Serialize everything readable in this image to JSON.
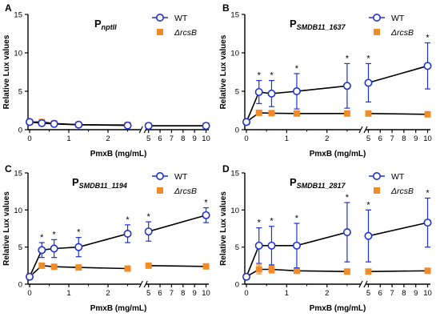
{
  "colors": {
    "wt": "#1e32d2",
    "rcsb": "#f08c28",
    "axis": "#000000"
  },
  "chart_data": [
    {
      "type": "line",
      "panel": "A",
      "title_main": "P",
      "title_sub": "nptII",
      "xlabel": "PmxB (mg/mL)",
      "ylabel": "Relative Lux values",
      "ylim": [
        0,
        15
      ],
      "yticks": [
        "0",
        "5",
        "10",
        "15"
      ],
      "xticks_left": [
        "0",
        "1",
        "2"
      ],
      "xticks_right": [
        "5",
        "6",
        "7",
        "8",
        "9",
        "10"
      ],
      "x_break": [
        3,
        4.7
      ],
      "legend_position": "top-right",
      "series": [
        {
          "name": "WT",
          "marker": "circle",
          "x": [
            0,
            0.3125,
            0.625,
            1.25,
            2.5,
            5,
            10
          ],
          "y": [
            1.0,
            0.85,
            0.75,
            0.65,
            0.55,
            0.5,
            0.5
          ],
          "err": [
            0.1,
            0.3,
            0.2,
            0.1,
            0.1,
            0.1,
            0.1
          ],
          "sig": [
            false,
            false,
            false,
            false,
            false,
            false,
            false
          ]
        },
        {
          "name": "ΔrcsB",
          "marker": "square",
          "x": [
            0,
            0.3125,
            0.625,
            1.25,
            2.5,
            5,
            10
          ],
          "y": [
            1.0,
            1.0,
            0.8,
            0.65,
            0.6,
            0.5,
            0.5
          ],
          "err": [
            0.1,
            0.2,
            0.15,
            0.1,
            0.1,
            0.1,
            0.1
          ],
          "sig": [
            false,
            false,
            false,
            false,
            false,
            false,
            false
          ]
        }
      ]
    },
    {
      "type": "line",
      "panel": "B",
      "title_main": "P",
      "title_sub": "SMDB11_1637",
      "xlabel": "PmxB (mg/mL)",
      "ylabel": "Relative Lux values",
      "ylim": [
        0,
        15
      ],
      "yticks": [
        "0",
        "5",
        "10",
        "15"
      ],
      "xticks_left": [
        "0",
        "1",
        "2"
      ],
      "xticks_right": [
        "5",
        "6",
        "7",
        "8",
        "9",
        "10"
      ],
      "x_break": [
        3,
        4.7
      ],
      "legend_position": "top-right",
      "series": [
        {
          "name": "WT",
          "marker": "circle",
          "x": [
            0,
            0.3125,
            0.625,
            1.25,
            2.5,
            5,
            10
          ],
          "y": [
            1.0,
            4.9,
            4.7,
            5.0,
            5.7,
            6.1,
            8.3
          ],
          "err": [
            0.2,
            1.5,
            1.7,
            2.3,
            2.9,
            2.5,
            3.0
          ],
          "sig": [
            false,
            true,
            true,
            true,
            true,
            true,
            true
          ]
        },
        {
          "name": "ΔrcsB",
          "marker": "square",
          "x": [
            0,
            0.3125,
            0.625,
            1.25,
            2.5,
            5,
            10
          ],
          "y": [
            1.0,
            2.2,
            2.15,
            2.1,
            2.1,
            2.1,
            2.0
          ],
          "err": [
            0.1,
            0.1,
            0.1,
            0.1,
            0.1,
            0.1,
            0.1
          ],
          "sig": [
            false,
            false,
            false,
            false,
            false,
            false,
            false
          ]
        }
      ]
    },
    {
      "type": "line",
      "panel": "C",
      "title_main": "P",
      "title_sub": "SMDB11_1194",
      "xlabel": "PmxB (mg/mL)",
      "ylabel": "Relative Lux values",
      "ylim": [
        0,
        15
      ],
      "yticks": [
        "0",
        "5",
        "10",
        "15"
      ],
      "xticks_left": [
        "0",
        "1",
        "2"
      ],
      "xticks_right": [
        "5",
        "6",
        "7",
        "8",
        "9",
        "10"
      ],
      "x_break": [
        3,
        4.7
      ],
      "legend_position": "top-right",
      "series": [
        {
          "name": "WT",
          "marker": "circle",
          "x": [
            0,
            0.3125,
            0.625,
            1.25,
            2.5,
            5,
            10
          ],
          "y": [
            1.0,
            4.6,
            4.8,
            5.0,
            6.8,
            7.1,
            9.3
          ],
          "err": [
            0.2,
            1.0,
            1.2,
            1.3,
            1.2,
            1.3,
            1.0
          ],
          "sig": [
            false,
            true,
            true,
            true,
            true,
            true,
            true
          ]
        },
        {
          "name": "ΔrcsB",
          "marker": "square",
          "x": [
            0,
            0.3125,
            0.625,
            1.25,
            2.5,
            5,
            10
          ],
          "y": [
            1.0,
            2.5,
            2.35,
            2.25,
            2.1,
            2.5,
            2.4
          ],
          "err": [
            0.1,
            0.15,
            0.1,
            0.1,
            0.1,
            0.3,
            0.1
          ],
          "sig": [
            false,
            false,
            false,
            false,
            false,
            false,
            false
          ]
        }
      ]
    },
    {
      "type": "line",
      "panel": "D",
      "title_main": "P",
      "title_sub": "SMDB11_2817",
      "xlabel": "PmxB (mg/mL)",
      "ylabel": "Relative Lux values",
      "ylim": [
        0,
        15
      ],
      "yticks": [
        "0",
        "5",
        "10",
        "15"
      ],
      "xticks_left": [
        "0",
        "1",
        "2"
      ],
      "xticks_right": [
        "5",
        "6",
        "7",
        "8",
        "9",
        "10"
      ],
      "x_break": [
        3,
        4.7
      ],
      "legend_position": "top-right",
      "series": [
        {
          "name": "WT",
          "marker": "circle",
          "x": [
            0,
            0.3125,
            0.625,
            1.25,
            2.5,
            5,
            10
          ],
          "y": [
            1.0,
            5.2,
            5.2,
            5.2,
            7.0,
            6.5,
            8.3
          ],
          "err": [
            0.2,
            2.4,
            2.6,
            3.0,
            4.0,
            3.5,
            3.3
          ],
          "sig": [
            false,
            true,
            true,
            true,
            true,
            true,
            true
          ]
        },
        {
          "name": "ΔrcsB",
          "marker": "square",
          "x": [
            0,
            0.3125,
            0.625,
            1.25,
            2.5,
            5,
            10
          ],
          "y": [
            1.0,
            2.0,
            2.0,
            1.8,
            1.7,
            1.7,
            1.8
          ],
          "err": [
            0.1,
            0.6,
            0.5,
            0.3,
            0.2,
            0.2,
            0.2
          ],
          "sig": [
            false,
            false,
            false,
            false,
            false,
            false,
            false
          ]
        }
      ]
    }
  ]
}
